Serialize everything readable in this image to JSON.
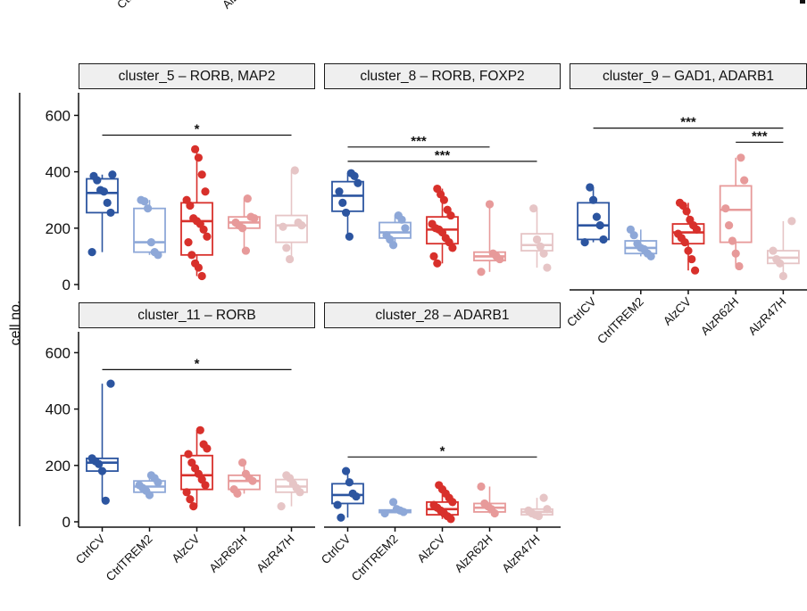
{
  "y_axis_label": "cell no.",
  "top_fragments": [
    "Ctrl",
    "Alz"
  ],
  "colors": {
    "CtrlCV": "#2c55a0",
    "CtrlTREM2": "#8ea8d8",
    "AlzCV": "#d8302b",
    "AlzR62H": "#e79a9a",
    "AlzR47H": "#e6c5c6"
  },
  "chart_data": [
    {
      "type": "box",
      "title": "cluster_5 – RORB, MAP2",
      "categories": [
        "CtrlCV",
        "CtrlTREM2",
        "AlzCV",
        "AlzR62H",
        "AlzR47H"
      ],
      "ylabel": "cell no.",
      "ylim": [
        0,
        650
      ],
      "yticks": [
        0,
        200,
        400,
        600
      ],
      "points": [
        [
          115,
          255,
          290,
          330,
          335,
          370,
          385,
          390
        ],
        [
          105,
          115,
          150,
          270,
          295,
          300
        ],
        [
          30,
          60,
          75,
          105,
          150,
          170,
          195,
          215,
          225,
          235,
          280,
          300,
          330,
          390,
          450,
          480
        ],
        [
          120,
          200,
          210,
          220,
          235,
          240,
          305
        ],
        [
          90,
          130,
          205,
          210,
          220,
          405
        ]
      ],
      "box": [
        {
          "min": 115,
          "q1": 255,
          "median": 325,
          "q3": 375,
          "max": 390
        },
        {
          "min": 105,
          "q1": 115,
          "median": 150,
          "q3": 270,
          "max": 300
        },
        {
          "min": 30,
          "q1": 105,
          "median": 225,
          "q3": 290,
          "max": 480
        },
        {
          "min": 120,
          "q1": 200,
          "median": 220,
          "q3": 240,
          "max": 305
        },
        {
          "min": 90,
          "q1": 150,
          "median": 210,
          "q3": 245,
          "max": 405
        }
      ],
      "significance": [
        {
          "from": "CtrlCV",
          "to": "AlzR47H",
          "label": "*",
          "y": 530
        }
      ]
    },
    {
      "type": "box",
      "title": "cluster_8 – RORB, FOXP2",
      "categories": [
        "CtrlCV",
        "CtrlTREM2",
        "AlzCV",
        "AlzR62H",
        "AlzR47H"
      ],
      "ylabel": "cell no.",
      "ylim": [
        0,
        650
      ],
      "yticks": [
        0,
        200,
        400,
        600
      ],
      "points": [
        [
          170,
          255,
          290,
          330,
          360,
          385,
          395
        ],
        [
          140,
          160,
          175,
          200,
          230,
          245
        ],
        [
          75,
          100,
          130,
          150,
          165,
          185,
          195,
          200,
          215,
          245,
          265,
          300,
          320,
          340
        ],
        [
          45,
          90,
          100,
          110,
          285
        ],
        [
          60,
          110,
          135,
          160,
          270
        ]
      ],
      "box": [
        {
          "min": 170,
          "q1": 260,
          "median": 315,
          "q3": 365,
          "max": 395
        },
        {
          "min": 140,
          "q1": 165,
          "median": 185,
          "q3": 220,
          "max": 245
        },
        {
          "min": 75,
          "q1": 145,
          "median": 195,
          "q3": 240,
          "max": 340
        },
        {
          "min": 45,
          "q1": 85,
          "median": 100,
          "q3": 115,
          "max": 285
        },
        {
          "min": 60,
          "q1": 120,
          "median": 140,
          "q3": 180,
          "max": 270
        }
      ],
      "significance": [
        {
          "from": "CtrlCV",
          "to": "AlzR62H",
          "label": "***",
          "y": 488
        },
        {
          "from": "CtrlCV",
          "to": "AlzR47H",
          "label": "***",
          "y": 437
        }
      ]
    },
    {
      "type": "box",
      "title": "cluster_9 – GAD1, ADARB1",
      "categories": [
        "CtrlCV",
        "CtrlTREM2",
        "AlzCV",
        "AlzR62H",
        "AlzR47H"
      ],
      "ylabel": "cell no.",
      "ylim": [
        0,
        650
      ],
      "yticks": [
        0,
        200,
        400,
        600
      ],
      "points": [
        [
          150,
          160,
          210,
          240,
          300,
          345
        ],
        [
          100,
          110,
          125,
          130,
          145,
          175,
          195
        ],
        [
          50,
          90,
          120,
          150,
          165,
          180,
          195,
          210,
          230,
          260,
          280,
          290
        ],
        [
          65,
          110,
          155,
          210,
          270,
          370,
          450
        ],
        [
          30,
          75,
          90,
          120,
          225
        ]
      ],
      "box": [
        {
          "min": 150,
          "q1": 160,
          "median": 210,
          "q3": 290,
          "max": 345
        },
        {
          "min": 100,
          "q1": 110,
          "median": 130,
          "q3": 155,
          "max": 195
        },
        {
          "min": 50,
          "q1": 145,
          "median": 185,
          "q3": 215,
          "max": 290
        },
        {
          "min": 65,
          "q1": 150,
          "median": 265,
          "q3": 350,
          "max": 450
        },
        {
          "min": 30,
          "q1": 75,
          "median": 95,
          "q3": 120,
          "max": 225
        }
      ],
      "significance": [
        {
          "from": "CtrlCV",
          "to": "AlzR47H",
          "label": "***",
          "y": 555
        },
        {
          "from": "AlzR62H",
          "to": "AlzR47H",
          "label": "***",
          "y": 505
        }
      ]
    },
    {
      "type": "box",
      "title": "cluster_11 – RORB",
      "categories": [
        "CtrlCV",
        "CtrlTREM2",
        "AlzCV",
        "AlzR62H",
        "AlzR47H"
      ],
      "ylabel": "cell no.",
      "ylim": [
        0,
        650
      ],
      "yticks": [
        0,
        200,
        400,
        600
      ],
      "points": [
        [
          75,
          180,
          205,
          215,
          225,
          490
        ],
        [
          95,
          110,
          120,
          130,
          140,
          155,
          165
        ],
        [
          55,
          80,
          105,
          130,
          150,
          170,
          190,
          210,
          240,
          260,
          275,
          325
        ],
        [
          100,
          115,
          145,
          155,
          170,
          210
        ],
        [
          55,
          105,
          120,
          135,
          155,
          165
        ]
      ],
      "box": [
        {
          "min": 75,
          "q1": 180,
          "median": 210,
          "q3": 225,
          "max": 490
        },
        {
          "min": 95,
          "q1": 105,
          "median": 125,
          "q3": 145,
          "max": 165
        },
        {
          "min": 55,
          "q1": 115,
          "median": 165,
          "q3": 235,
          "max": 325
        },
        {
          "min": 100,
          "q1": 115,
          "median": 145,
          "q3": 165,
          "max": 210
        },
        {
          "min": 55,
          "q1": 105,
          "median": 125,
          "q3": 150,
          "max": 165
        }
      ],
      "significance": [
        {
          "from": "CtrlCV",
          "to": "AlzR47H",
          "label": "*",
          "y": 540
        }
      ]
    },
    {
      "type": "box",
      "title": "cluster_28 – ADARB1",
      "categories": [
        "CtrlCV",
        "CtrlTREM2",
        "AlzCV",
        "AlzR62H",
        "AlzR47H"
      ],
      "ylabel": "cell no.",
      "ylim": [
        0,
        650
      ],
      "yticks": [
        0,
        200,
        400,
        600
      ],
      "points": [
        [
          15,
          60,
          90,
          100,
          140,
          180
        ],
        [
          30,
          35,
          40,
          45,
          70
        ],
        [
          10,
          20,
          30,
          40,
          50,
          60,
          70,
          85,
          100,
          115,
          130
        ],
        [
          30,
          45,
          55,
          65,
          125
        ],
        [
          20,
          25,
          30,
          40,
          45,
          85
        ]
      ],
      "box": [
        {
          "min": 15,
          "q1": 65,
          "median": 95,
          "q3": 135,
          "max": 180
        },
        {
          "min": 30,
          "q1": 33,
          "median": 38,
          "q3": 42,
          "max": 70
        },
        {
          "min": 10,
          "q1": 25,
          "median": 45,
          "q3": 70,
          "max": 130
        },
        {
          "min": 30,
          "q1": 35,
          "median": 50,
          "q3": 65,
          "max": 125
        },
        {
          "min": 20,
          "q1": 25,
          "median": 35,
          "q3": 45,
          "max": 85
        }
      ],
      "significance": [
        {
          "from": "CtrlCV",
          "to": "AlzR47H",
          "label": "*",
          "y": 230
        }
      ]
    }
  ]
}
